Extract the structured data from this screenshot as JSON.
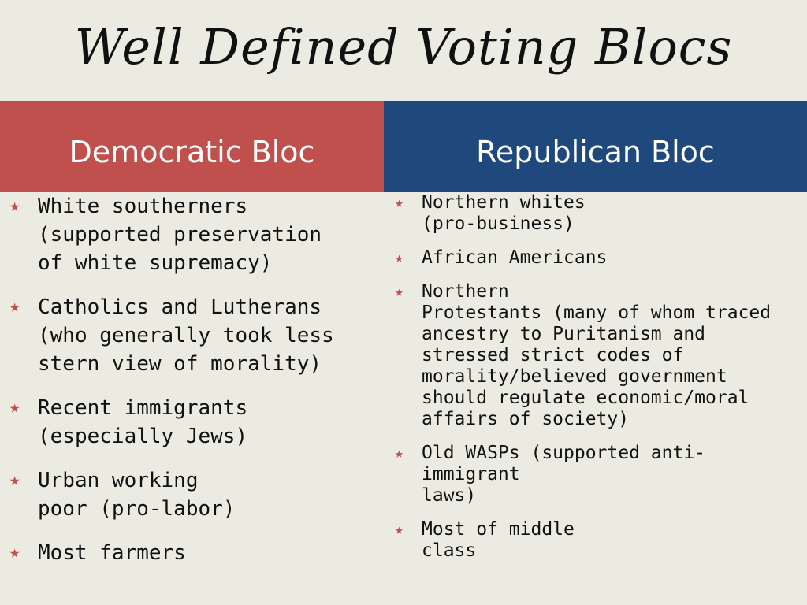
{
  "title": "Well Defined Voting Blocs",
  "colors": {
    "background": "#ecebe1",
    "democratic": "#c0504d",
    "republican": "#1f497d",
    "bullet": "#c0504d"
  },
  "bullet_icon": "star-icon",
  "democratic": {
    "header": "Democratic Bloc",
    "items": [
      "White southerners\n(supported preservation\nof white supremacy)",
      "Catholics and Lutherans\n(who generally took less\nstern view of morality)",
      "Recent immigrants\n(especially Jews)",
      "Urban working\npoor (pro-labor)",
      "Most farmers"
    ]
  },
  "republican": {
    "header": "Republican Bloc",
    "items": [
      "Northern whites\n(pro-business)",
      "African Americans",
      "Northern\nProtestants (many of whom traced\nancestry to Puritanism and\nstressed strict codes of\nmorality/believed government\nshould regulate economic/moral\naffairs of society)",
      "Old WASPs (supported anti-\nimmigrant\nlaws)",
      "Most of middle\nclass"
    ]
  }
}
